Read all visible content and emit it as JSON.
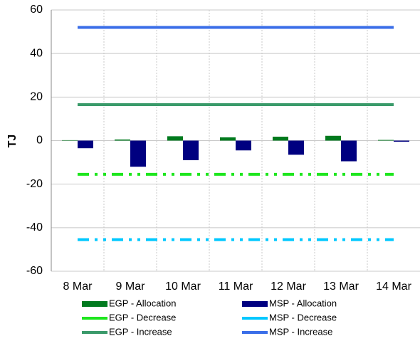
{
  "chart_data": {
    "type": "bar",
    "y_label": "TJ",
    "categories": [
      "8 Mar",
      "9 Mar",
      "10 Mar",
      "11 Mar",
      "12 Mar",
      "13 Mar",
      "14 Mar"
    ],
    "ylim": [
      -60,
      60
    ],
    "yticks": [
      -60,
      -40,
      -20,
      0,
      20,
      40,
      60
    ],
    "grid": true,
    "series": [
      {
        "name": "EGP - Allocation",
        "type": "bar",
        "color": "#007a1e",
        "values": [
          0.2,
          0.5,
          2,
          1.5,
          1.8,
          2.2,
          0.3
        ]
      },
      {
        "name": "MSP - Allocation",
        "type": "bar",
        "color": "#000080",
        "values": [
          -3.5,
          -12,
          -9,
          -4.5,
          -6.5,
          -9.5,
          -0.5
        ]
      },
      {
        "name": "EGP - Decrease",
        "type": "line",
        "line_style": "dash-dot",
        "color": "#1ee61e",
        "values": [
          -15.5,
          -15.5,
          -15.5,
          -15.5,
          -15.5,
          -15.5,
          -15.5
        ]
      },
      {
        "name": "MSP - Decrease",
        "type": "line",
        "line_style": "dash-dot",
        "color": "#00c8ff",
        "values": [
          -45.5,
          -45.5,
          -45.5,
          -45.5,
          -45.5,
          -45.5,
          -45.5
        ]
      },
      {
        "name": "EGP - Increase",
        "type": "line",
        "line_style": "solid",
        "color": "#3a9a6a",
        "values": [
          16.5,
          16.5,
          16.5,
          16.5,
          16.5,
          16.5,
          16.5
        ]
      },
      {
        "name": "MSP - Increase",
        "type": "line",
        "line_style": "solid",
        "color": "#3a6ee8",
        "values": [
          52,
          52,
          52,
          52,
          52,
          52,
          52
        ]
      }
    ]
  }
}
